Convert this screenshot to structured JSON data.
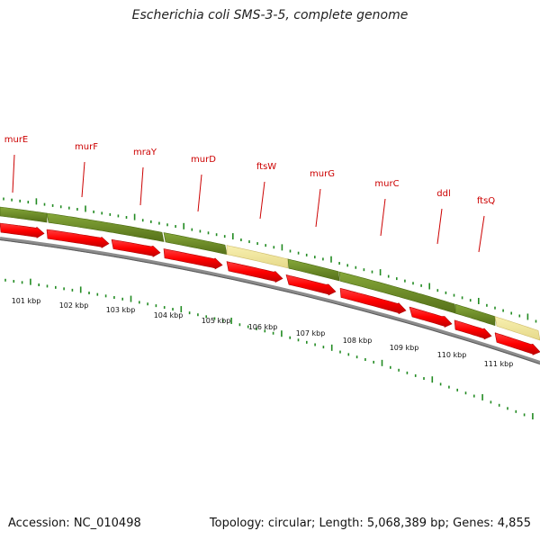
{
  "header": {
    "title": "Escherichia coli SMS-3-5, complete genome"
  },
  "footer": {
    "accession": "Accession: NC_010498",
    "summary": "Topology: circular; Length: 5,068,389 bp; Genes: 4,855"
  },
  "colors": {
    "gene_label": "#cc0000",
    "arrow_fill": "#ff0000",
    "arrow_dark": "#c40000",
    "band_green": "#6b8e23",
    "band_yellow": "#f0e68c",
    "backbone": "#808080",
    "tick": "#228b22"
  },
  "genes": [
    {
      "name": "murE"
    },
    {
      "name": "murF"
    },
    {
      "name": "mraY"
    },
    {
      "name": "murD"
    },
    {
      "name": "ftsW"
    },
    {
      "name": "murG"
    },
    {
      "name": "murC"
    },
    {
      "name": "ddl"
    },
    {
      "name": "ftsQ"
    }
  ],
  "kbp_labels": [
    "101 kbp",
    "102 kbp",
    "103 kbp",
    "104 kbp",
    "105 kbp",
    "106 kbp",
    "107 kbp",
    "108 kbp",
    "109 kbp",
    "110 kbp",
    "111 kbp"
  ]
}
